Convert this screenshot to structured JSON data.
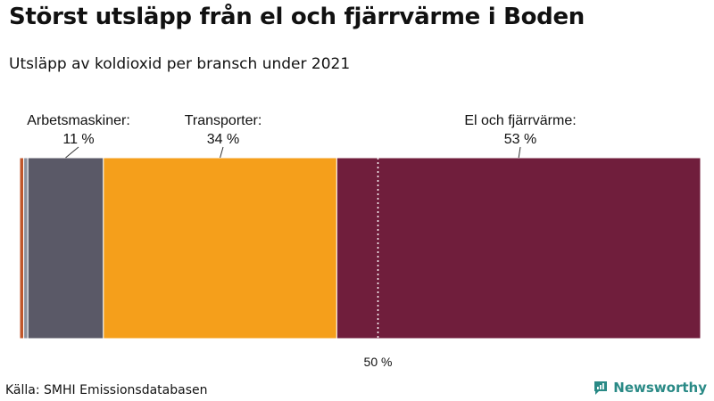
{
  "title": "Störst utsläpp från el och fjärrvärme i Boden",
  "subtitle": "Utsläpp av koldioxid per bransch under 2021",
  "source": "Källa: SMHI Emissionsdatabasen",
  "brand": {
    "name": "Newsworthy",
    "logo_icon": "newsworthy-logo-icon",
    "color": "#2a8a86"
  },
  "chart_data": {
    "type": "bar",
    "orientation": "horizontal-stacked",
    "categories": [
      "",
      "",
      "Arbetsmaskiner:",
      "Transporter:",
      "El och fjärrvärme:"
    ],
    "values": [
      0.6,
      0.6,
      11,
      34,
      53
    ],
    "value_labels": [
      "",
      "",
      "11 %",
      "34 %",
      "53 %"
    ],
    "colors": [
      "#c0562b",
      "#8a8f9c",
      "#5a5967",
      "#f59f1b",
      "#701e3c"
    ],
    "xlim": [
      0,
      100
    ],
    "reference_line": {
      "value": 50,
      "label": "50 %"
    },
    "grid": false,
    "legend": "none"
  }
}
